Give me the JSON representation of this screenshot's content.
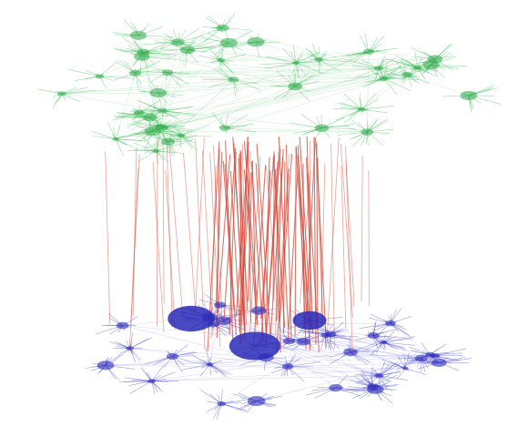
{
  "figure": {
    "layers": [
      {
        "id": "top-network",
        "color": "#3fbf5a",
        "hub_color": "#2fa84a"
      },
      {
        "id": "bottom-network",
        "color": "#4a4ad0",
        "hub_color": "#2a2ab8"
      }
    ],
    "interlayer_links": {
      "color": "#d04a3a"
    }
  }
}
